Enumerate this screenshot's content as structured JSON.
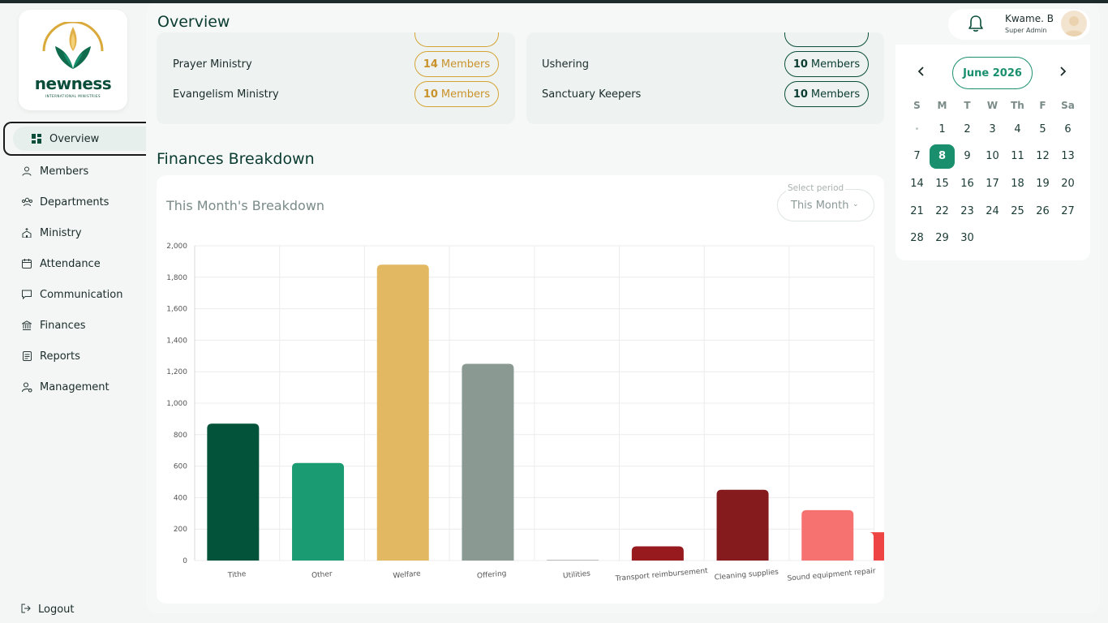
{
  "sidebar": {
    "logo": {
      "name": "newness",
      "subtitle": "INTERNATIONAL MINISTRIES"
    },
    "items": [
      {
        "label": "Overview",
        "icon": "grid-icon"
      },
      {
        "label": "Members",
        "icon": "user-icon"
      },
      {
        "label": "Departments",
        "icon": "people-icon"
      },
      {
        "label": "Ministry",
        "icon": "church-icon"
      },
      {
        "label": "Attendance",
        "icon": "calendar-icon"
      },
      {
        "label": "Communication",
        "icon": "chat-icon"
      },
      {
        "label": "Finances",
        "icon": "bank-icon"
      },
      {
        "label": "Reports",
        "icon": "report-icon"
      },
      {
        "label": "Management",
        "icon": "user-gear-icon"
      }
    ],
    "logout": "Logout"
  },
  "header": {
    "title": "Overview",
    "user": {
      "name": "Kwame. B",
      "role": "Super Admin"
    }
  },
  "ministries": {
    "left": [
      {
        "name": "Prayer Ministry",
        "count": "14",
        "unit": "Members"
      },
      {
        "name": "Evangelism Ministry",
        "count": "10",
        "unit": "Members"
      }
    ],
    "right": [
      {
        "name": "Ushering",
        "count": "10",
        "unit": "Members"
      },
      {
        "name": "Sanctuary Keepers",
        "count": "10",
        "unit": "Members"
      }
    ]
  },
  "finances": {
    "section_title": "Finances Breakdown",
    "card_title": "This Month's Breakdown",
    "period": {
      "label": "Select period",
      "value": "This Month"
    }
  },
  "chart_data": {
    "type": "bar",
    "categories": [
      "Tithe",
      "Other",
      "Welfare",
      "Offering",
      "Utilities",
      "Transport reimbursement",
      "Cleaning supplies",
      "Sound equipment repair",
      ""
    ],
    "values": [
      870,
      620,
      1880,
      1250,
      5,
      90,
      450,
      320,
      180
    ],
    "colors": [
      "#03533b",
      "#1a9b72",
      "#e2b962",
      "#8a9a93",
      "#bbbbbb",
      "#961a1e",
      "#861b1d",
      "#f67270",
      "#ef4444"
    ],
    "ylim": [
      0,
      2000
    ],
    "yticks": [
      "0",
      "200",
      "400",
      "600",
      "800",
      "1,000",
      "1,200",
      "1,400",
      "1,600",
      "1,800",
      "2,000"
    ],
    "grid": true
  },
  "calendar": {
    "month": "June 2026",
    "weekdays": [
      "S",
      "M",
      "T",
      "W",
      "Th",
      "F",
      "Sa"
    ],
    "weeks": [
      [
        "•",
        "1",
        "2",
        "3",
        "4",
        "5",
        "6"
      ],
      [
        "7",
        "8",
        "9",
        "10",
        "11",
        "12",
        "13"
      ],
      [
        "14",
        "15",
        "16",
        "17",
        "18",
        "19",
        "20"
      ],
      [
        "21",
        "22",
        "23",
        "24",
        "25",
        "26",
        "27"
      ],
      [
        "28",
        "29",
        "30",
        "",
        "",
        "",
        ""
      ]
    ],
    "today": "8"
  }
}
